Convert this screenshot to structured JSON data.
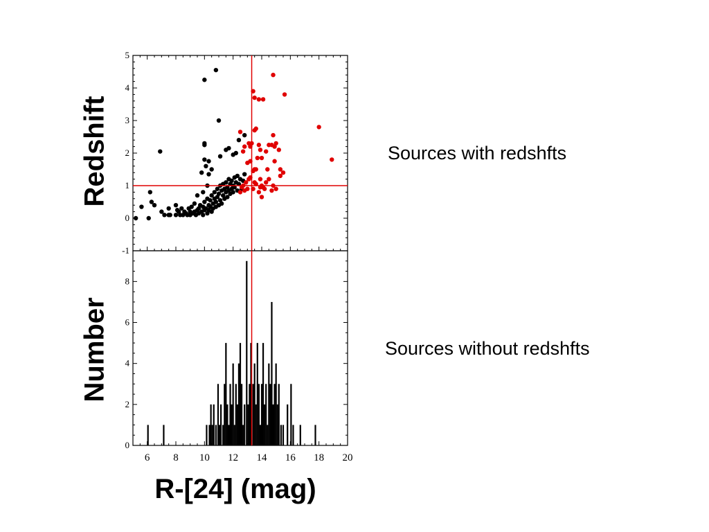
{
  "chart_data": [
    {
      "type": "scatter",
      "ylabel": "Redshift",
      "xlim": [
        5,
        20
      ],
      "ylim": [
        -1,
        5
      ],
      "yticks": [
        -1,
        0,
        1,
        2,
        3,
        4,
        5
      ],
      "ytick_labels": [
        "-1",
        "0",
        "1",
        "2",
        "3",
        "4",
        "5"
      ],
      "threshold_x": 13.3,
      "threshold_y": 1,
      "guide_color": "#e00000",
      "annotation": "Sources with redshfts",
      "series": [
        {
          "color": "#000000",
          "points": [
            [
              5.2,
              0
            ],
            [
              6.1,
              0
            ],
            [
              6.2,
              0.8
            ],
            [
              6.3,
              0.5
            ],
            [
              6.5,
              0.4
            ],
            [
              6.9,
              2.05
            ],
            [
              7.0,
              0.2
            ],
            [
              7.2,
              0.1
            ],
            [
              7.5,
              0.1
            ],
            [
              7.6,
              0.1
            ],
            [
              8.0,
              0.1
            ],
            [
              8.1,
              0.25
            ],
            [
              8.2,
              0.2
            ],
            [
              8.3,
              0.1
            ],
            [
              8.4,
              0.3
            ],
            [
              8.5,
              0.1
            ],
            [
              8.6,
              0.2
            ],
            [
              8.7,
              0.15
            ],
            [
              8.8,
              0.1
            ],
            [
              8.9,
              0.3
            ],
            [
              9.0,
              0.2
            ],
            [
              9.0,
              0.1
            ],
            [
              9.1,
              0.35
            ],
            [
              9.2,
              0.15
            ],
            [
              9.3,
              0.2
            ],
            [
              9.3,
              0.45
            ],
            [
              9.4,
              0.1
            ],
            [
              9.5,
              0.25
            ],
            [
              9.6,
              0.3
            ],
            [
              9.6,
              0.15
            ],
            [
              9.7,
              0.4
            ],
            [
              9.8,
              0.2
            ],
            [
              9.9,
              0.35
            ],
            [
              9.9,
              0.1
            ],
            [
              10.0,
              0.5
            ],
            [
              10.0,
              0.25
            ],
            [
              10.1,
              0.3
            ],
            [
              10.2,
              0.6
            ],
            [
              10.2,
              0.15
            ],
            [
              10.3,
              0.4
            ],
            [
              10.3,
              0.25
            ],
            [
              10.4,
              0.55
            ],
            [
              10.4,
              0.35
            ],
            [
              10.5,
              0.7
            ],
            [
              10.5,
              0.2
            ],
            [
              10.6,
              0.45
            ],
            [
              10.6,
              0.3
            ],
            [
              10.7,
              0.6
            ],
            [
              10.7,
              0.8
            ],
            [
              10.8,
              0.5
            ],
            [
              10.8,
              0.35
            ],
            [
              10.9,
              0.65
            ],
            [
              10.9,
              0.9
            ],
            [
              11.0,
              0.4
            ],
            [
              11.0,
              0.75
            ],
            [
              11.1,
              0.55
            ],
            [
              11.1,
              1.0
            ],
            [
              11.2,
              0.85
            ],
            [
              11.2,
              0.45
            ],
            [
              11.3,
              0.7
            ],
            [
              11.3,
              1.05
            ],
            [
              11.4,
              0.6
            ],
            [
              11.4,
              0.9
            ],
            [
              11.5,
              0.8
            ],
            [
              11.5,
              1.1
            ],
            [
              11.6,
              0.65
            ],
            [
              11.6,
              0.95
            ],
            [
              11.7,
              1.2
            ],
            [
              11.7,
              0.85
            ],
            [
              11.8,
              0.75
            ],
            [
              11.8,
              1.05
            ],
            [
              11.9,
              0.9
            ],
            [
              11.9,
              1.15
            ],
            [
              12.0,
              1.0
            ],
            [
              12.0,
              0.8
            ],
            [
              12.1,
              1.25
            ],
            [
              12.1,
              0.95
            ],
            [
              12.2,
              1.1
            ],
            [
              12.3,
              0.85
            ],
            [
              12.3,
              1.3
            ],
            [
              12.4,
              1.05
            ],
            [
              12.5,
              1.2
            ],
            [
              12.6,
              0.9
            ],
            [
              12.7,
              1.15
            ],
            [
              12.8,
              1.35
            ],
            [
              10.0,
              4.25
            ],
            [
              10.8,
              4.55
            ],
            [
              10.0,
              2.25
            ],
            [
              10.0,
              2.3
            ],
            [
              11.0,
              3.0
            ],
            [
              10.0,
              1.8
            ],
            [
              10.3,
              1.75
            ],
            [
              11.1,
              1.9
            ],
            [
              11.5,
              2.1
            ],
            [
              11.7,
              2.15
            ],
            [
              12.0,
              1.95
            ],
            [
              12.2,
              2.0
            ],
            [
              12.4,
              2.4
            ],
            [
              12.8,
              2.55
            ],
            [
              9.8,
              1.4
            ],
            [
              10.5,
              1.5
            ],
            [
              10.1,
              1.6
            ],
            [
              10.2,
              1.0
            ],
            [
              10.3,
              1.35
            ],
            [
              9.9,
              0.8
            ],
            [
              9.5,
              0.7
            ],
            [
              8.0,
              0.4
            ],
            [
              7.5,
              0.3
            ],
            [
              5.6,
              0.35
            ]
          ]
        },
        {
          "color": "#e00000",
          "points": [
            [
              12.5,
              0.8
            ],
            [
              12.6,
              0.95
            ],
            [
              12.7,
              1.0
            ],
            [
              12.8,
              0.85
            ],
            [
              12.9,
              1.1
            ],
            [
              13.0,
              0.9
            ],
            [
              13.1,
              1.2
            ],
            [
              13.2,
              1.25
            ],
            [
              13.4,
              0.9
            ],
            [
              13.5,
              1.1
            ],
            [
              13.6,
              1.05
            ],
            [
              13.8,
              0.8
            ],
            [
              13.9,
              1.2
            ],
            [
              14.0,
              1.0
            ],
            [
              14.1,
              0.95
            ],
            [
              14.2,
              0.9
            ],
            [
              14.3,
              1.1
            ],
            [
              14.5,
              1.2
            ],
            [
              14.7,
              0.85
            ],
            [
              14.8,
              1.0
            ],
            [
              15.0,
              0.9
            ],
            [
              15.3,
              1.3
            ],
            [
              15.5,
              1.4
            ],
            [
              12.5,
              2.65
            ],
            [
              13.4,
              3.9
            ],
            [
              13.5,
              3.7
            ],
            [
              13.5,
              2.7
            ],
            [
              13.6,
              2.75
            ],
            [
              13.5,
              1.5
            ],
            [
              13.6,
              1.5
            ],
            [
              13.4,
              1.45
            ],
            [
              13.3,
              2.3
            ],
            [
              13.8,
              3.65
            ],
            [
              14.1,
              3.65
            ],
            [
              14.8,
              4.4
            ],
            [
              15.6,
              3.8
            ],
            [
              18.0,
              2.8
            ],
            [
              18.9,
              1.8
            ],
            [
              13.0,
              1.7
            ],
            [
              13.1,
              2.3
            ],
            [
              13.2,
              2.2
            ],
            [
              13.2,
              1.75
            ],
            [
              12.7,
              2.05
            ],
            [
              12.8,
              2.2
            ],
            [
              13.8,
              2.25
            ],
            [
              13.7,
              1.85
            ],
            [
              13.9,
              2.1
            ],
            [
              14.0,
              1.85
            ],
            [
              14.3,
              2.05
            ],
            [
              14.5,
              2.25
            ],
            [
              14.7,
              2.25
            ],
            [
              14.8,
              2.55
            ],
            [
              14.9,
              2.2
            ],
            [
              15.0,
              2.3
            ],
            [
              15.2,
              2.1
            ],
            [
              14.4,
              1.5
            ],
            [
              15.3,
              1.5
            ],
            [
              14.9,
              1.75
            ],
            [
              14.0,
              0.65
            ],
            [
              13.9,
              0.95
            ]
          ]
        }
      ]
    },
    {
      "type": "bar",
      "ylabel": "Number",
      "xlabel": "R-[24] (mag)",
      "xlim": [
        5,
        20
      ],
      "ylim": [
        0,
        9.5
      ],
      "xticks": [
        6,
        8,
        10,
        12,
        14,
        16,
        18,
        20
      ],
      "xtick_labels": [
        "6",
        "8",
        "10",
        "12",
        "14",
        "16",
        "18",
        "20"
      ],
      "yticks": [
        0,
        2,
        4,
        6,
        8
      ],
      "ytick_labels": [
        "0",
        "2",
        "4",
        "6",
        "8"
      ],
      "threshold_x": 13.3,
      "annotation": "Sources without redshfts",
      "bins": [
        [
          6.05,
          1
        ],
        [
          7.15,
          1
        ],
        [
          10.15,
          1
        ],
        [
          10.35,
          1
        ],
        [
          10.45,
          2
        ],
        [
          10.55,
          1
        ],
        [
          10.65,
          2
        ],
        [
          10.8,
          1
        ],
        [
          10.95,
          3
        ],
        [
          11.05,
          1
        ],
        [
          11.15,
          2
        ],
        [
          11.3,
          1
        ],
        [
          11.4,
          3
        ],
        [
          11.5,
          5
        ],
        [
          11.6,
          2
        ],
        [
          11.7,
          1
        ],
        [
          11.8,
          3
        ],
        [
          11.9,
          2
        ],
        [
          12.0,
          4
        ],
        [
          12.1,
          1
        ],
        [
          12.2,
          3
        ],
        [
          12.3,
          2
        ],
        [
          12.4,
          4
        ],
        [
          12.5,
          5
        ],
        [
          12.6,
          3
        ],
        [
          12.7,
          1
        ],
        [
          12.8,
          2
        ],
        [
          12.95,
          9
        ],
        [
          13.05,
          2
        ],
        [
          13.15,
          3
        ],
        [
          13.25,
          5
        ],
        [
          13.4,
          3
        ],
        [
          13.5,
          4
        ],
        [
          13.6,
          2
        ],
        [
          13.7,
          5
        ],
        [
          13.8,
          3
        ],
        [
          13.9,
          1
        ],
        [
          14.0,
          3
        ],
        [
          14.1,
          5
        ],
        [
          14.2,
          2
        ],
        [
          14.3,
          3
        ],
        [
          14.4,
          1
        ],
        [
          14.5,
          4
        ],
        [
          14.6,
          3
        ],
        [
          14.7,
          7
        ],
        [
          14.8,
          2
        ],
        [
          14.9,
          3
        ],
        [
          15.0,
          4
        ],
        [
          15.1,
          2
        ],
        [
          15.2,
          3
        ],
        [
          15.35,
          1
        ],
        [
          15.5,
          1
        ],
        [
          15.8,
          2
        ],
        [
          16.05,
          3
        ],
        [
          16.2,
          1
        ],
        [
          16.7,
          1
        ],
        [
          17.75,
          1
        ]
      ]
    }
  ]
}
